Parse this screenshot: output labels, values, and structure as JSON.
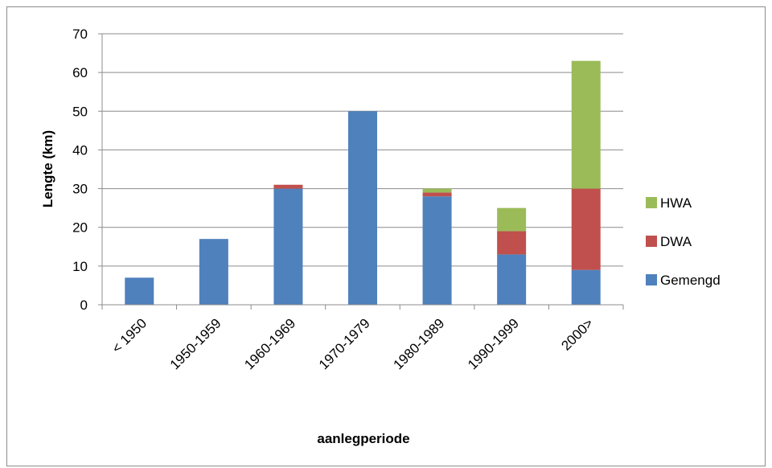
{
  "chart_data": {
    "type": "bar",
    "stacked": true,
    "categories": [
      "< 1950",
      "1950-1959",
      "1960-1969",
      "1970-1979",
      "1980-1989",
      "1990-1999",
      "2000>"
    ],
    "series": [
      {
        "name": "Gemengd",
        "color": "#4f81bd",
        "values": [
          7,
          17,
          30,
          50,
          28,
          13,
          9
        ]
      },
      {
        "name": "DWA",
        "color": "#c0504d",
        "values": [
          0,
          0,
          1,
          0,
          1,
          6,
          21
        ]
      },
      {
        "name": "HWA",
        "color": "#9bbb59",
        "values": [
          0,
          0,
          0,
          0,
          1,
          6,
          33
        ]
      }
    ],
    "xlabel": "aanlegperiode",
    "ylabel": "Lengte (km)",
    "ylim": [
      0,
      70
    ],
    "yticks": [
      0,
      10,
      20,
      30,
      40,
      50,
      60,
      70
    ],
    "grid": true,
    "legend": "right"
  }
}
